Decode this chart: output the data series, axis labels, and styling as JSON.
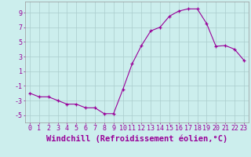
{
  "x": [
    0,
    1,
    2,
    3,
    4,
    5,
    6,
    7,
    8,
    9,
    10,
    11,
    12,
    13,
    14,
    15,
    16,
    17,
    18,
    19,
    20,
    21,
    22,
    23
  ],
  "y": [
    -2.0,
    -2.5,
    -2.5,
    -3.0,
    -3.5,
    -3.5,
    -4.0,
    -4.0,
    -4.8,
    -4.8,
    -1.5,
    2.0,
    4.5,
    6.5,
    7.0,
    8.5,
    9.2,
    9.5,
    9.5,
    7.5,
    4.4,
    4.5,
    4.0,
    2.5
  ],
  "line_color": "#990099",
  "marker": "+",
  "background_color": "#cceeed",
  "grid_color": "#aacccc",
  "xlabel": "Windchill (Refroidissement éolien,°C)",
  "yticks": [
    -5,
    -3,
    -1,
    1,
    3,
    5,
    7,
    9
  ],
  "ylabel_ticks": [
    "-5",
    "-3",
    "-1",
    "1",
    "3",
    "5",
    "7",
    "9"
  ],
  "ylim": [
    -6.0,
    10.5
  ],
  "xlim": [
    -0.5,
    23.5
  ],
  "tick_color": "#990099",
  "xlabel_color": "#990099",
  "xlabel_fontsize": 7.5,
  "tick_fontsize": 6.0
}
